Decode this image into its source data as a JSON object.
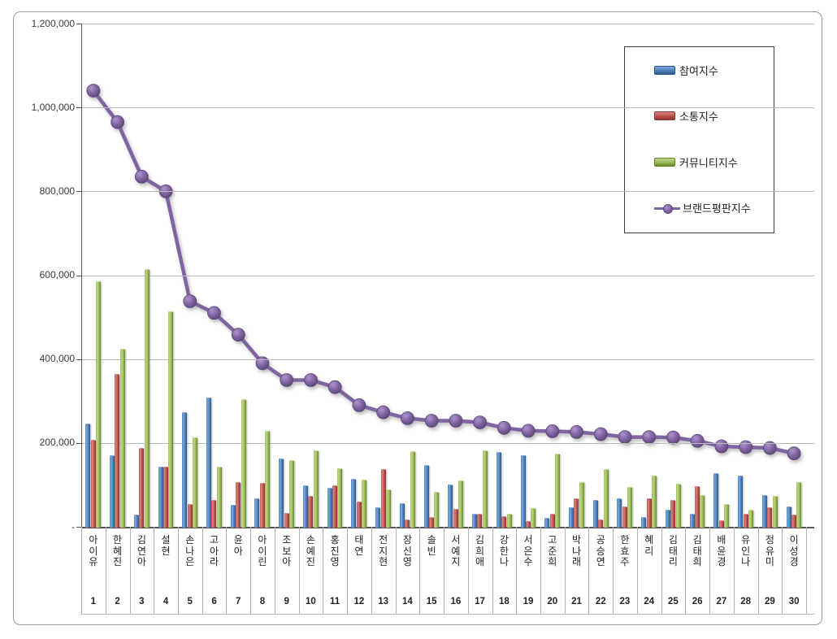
{
  "chart_data": {
    "type": "bar",
    "title": "",
    "categories": [
      "아이유",
      "한혜진",
      "김연아",
      "설현",
      "손나은",
      "고아라",
      "윤아",
      "아이린",
      "조보아",
      "손예진",
      "홍진영",
      "태연",
      "전지현",
      "장신영",
      "솔빈",
      "서예지",
      "김희애",
      "강한나",
      "서은수",
      "고준희",
      "박나래",
      "공승연",
      "한효주",
      "혜리",
      "김태리",
      "김태희",
      "배윤경",
      "유인나",
      "정유미",
      "이성경"
    ],
    "ranks": [
      "1",
      "2",
      "3",
      "4",
      "5",
      "6",
      "7",
      "8",
      "9",
      "10",
      "11",
      "12",
      "13",
      "14",
      "15",
      "16",
      "17",
      "18",
      "19",
      "20",
      "21",
      "22",
      "23",
      "24",
      "25",
      "26",
      "27",
      "28",
      "29",
      "30"
    ],
    "series": [
      {
        "key": "participation",
        "name": "참여지수",
        "type": "bar",
        "color": "#4F81BD",
        "color_light": "#7BA7DB",
        "color_dark": "#2E5983",
        "values": [
          246000,
          170000,
          29000,
          144000,
          274000,
          308000,
          52000,
          68000,
          163000,
          99000,
          94000,
          114000,
          47000,
          56000,
          148000,
          101000,
          32000,
          179000,
          170000,
          21000,
          47000,
          64000,
          67000,
          23000,
          41000,
          32000,
          129000,
          123000,
          75000,
          49000
        ]
      },
      {
        "key": "communication",
        "name": "소통지수",
        "type": "bar",
        "color": "#C0504D",
        "color_light": "#D58683",
        "color_dark": "#8B3734",
        "values": [
          208000,
          365000,
          188000,
          144000,
          55000,
          65000,
          106000,
          104000,
          33000,
          73000,
          99000,
          60000,
          137000,
          18000,
          23000,
          42000,
          32000,
          26000,
          13000,
          31000,
          67000,
          18000,
          49000,
          67000,
          64000,
          97000,
          15000,
          31000,
          47000,
          30000
        ]
      },
      {
        "key": "community",
        "name": "커뮤니티지수",
        "type": "bar",
        "color": "#9BBB59",
        "color_light": "#BDD787",
        "color_dark": "#68862F",
        "values": [
          585000,
          425000,
          615000,
          513000,
          213000,
          143000,
          304000,
          229000,
          159000,
          183000,
          140000,
          112000,
          90000,
          181000,
          83000,
          110000,
          182000,
          31000,
          44000,
          175000,
          107000,
          137000,
          96000,
          122000,
          103000,
          75000,
          54000,
          41000,
          73000,
          106000
        ]
      },
      {
        "key": "brand_reputation",
        "name": "브랜드평판지수",
        "type": "line",
        "color": "#8064A2",
        "color_light": "#AE94CC",
        "color_dark": "#5D4777",
        "values": [
          1040000,
          965000,
          835000,
          800000,
          538000,
          510000,
          458000,
          390000,
          350000,
          350000,
          333000,
          290000,
          273000,
          259000,
          253000,
          253000,
          249000,
          236000,
          229000,
          228000,
          226000,
          221000,
          214000,
          214000,
          213000,
          205000,
          192000,
          190000,
          188000,
          175000
        ]
      }
    ],
    "y_axis": {
      "min": 0,
      "max": 1200000,
      "step": 200000,
      "tick_labels": [
        "-",
        "200,000",
        "400,000",
        "600,000",
        "800,000",
        "1,000,000",
        "1,200,000"
      ]
    },
    "grid": true,
    "legend_position": "top-right"
  }
}
